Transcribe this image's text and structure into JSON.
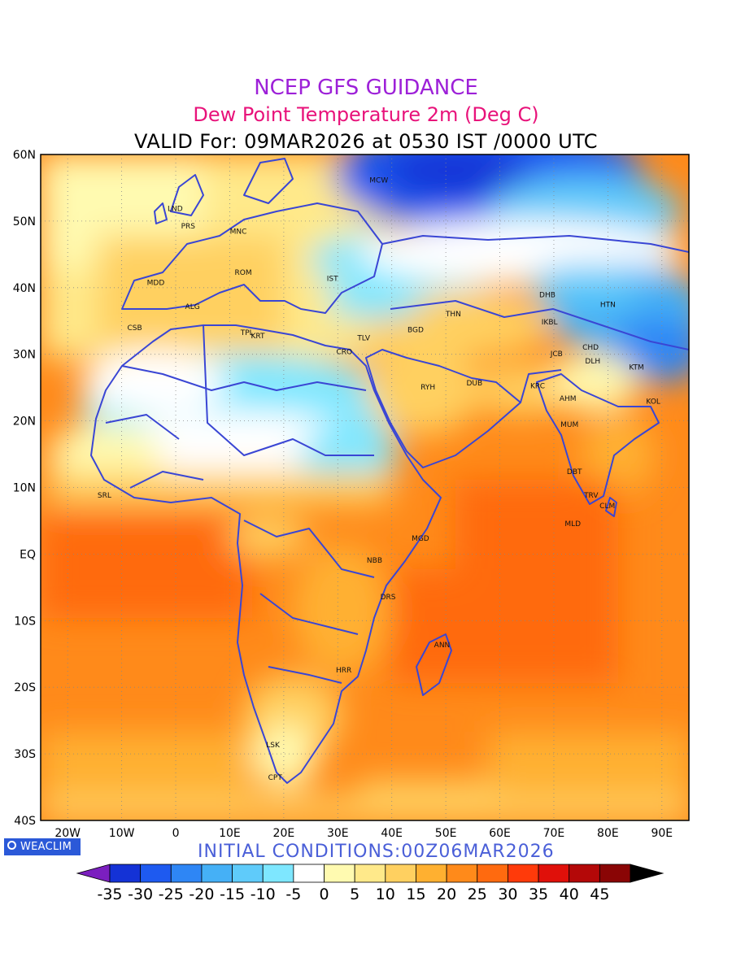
{
  "title": "NCEP GFS GUIDANCE",
  "subtitle": "Dew Point Temperature 2m (Deg C)",
  "valid_line": "VALID For: 09MAR2026 at 0530 IST /0000 UTC",
  "initial_conditions": "INITIAL CONDITIONS:00Z06MAR2026",
  "logo_text": "WEACLIM",
  "map": {
    "lat_labels": [
      "60N",
      "50N",
      "40N",
      "30N",
      "20N",
      "10N",
      "EQ",
      "10S",
      "20S",
      "30S",
      "40S"
    ],
    "lon_labels": [
      "20W",
      "10W",
      "0",
      "10E",
      "20E",
      "30E",
      "40E",
      "50E",
      "60E",
      "70E",
      "80E",
      "90E"
    ],
    "lat_range": [
      -40,
      60
    ],
    "lon_range": [
      -25,
      95
    ],
    "grid": "dotted",
    "stations": [
      {
        "name": "MCW",
        "lon": 37.6,
        "lat": 55.8
      },
      {
        "name": "LND",
        "lon": -0.1,
        "lat": 51.5
      },
      {
        "name": "PRS",
        "lon": 2.3,
        "lat": 48.9
      },
      {
        "name": "MNC",
        "lon": 11.6,
        "lat": 48.1
      },
      {
        "name": "ROM",
        "lon": 12.5,
        "lat": 41.9
      },
      {
        "name": "MDD",
        "lon": -3.7,
        "lat": 40.4
      },
      {
        "name": "IST",
        "lon": 29.0,
        "lat": 41.0
      },
      {
        "name": "ALG",
        "lon": 3.1,
        "lat": 36.8
      },
      {
        "name": "CSB",
        "lon": -7.6,
        "lat": 33.6
      },
      {
        "name": "TPL",
        "lon": 13.2,
        "lat": 32.9
      },
      {
        "name": "KRT",
        "lon": 15.2,
        "lat": 32.4
      },
      {
        "name": "TLV",
        "lon": 34.8,
        "lat": 32.1
      },
      {
        "name": "BGD",
        "lon": 44.4,
        "lat": 33.3
      },
      {
        "name": "THN",
        "lon": 51.4,
        "lat": 35.7
      },
      {
        "name": "CRO",
        "lon": 31.2,
        "lat": 30.0
      },
      {
        "name": "RYH",
        "lon": 46.7,
        "lat": 24.7
      },
      {
        "name": "DUB",
        "lon": 55.3,
        "lat": 25.3
      },
      {
        "name": "KRC",
        "lon": 67.0,
        "lat": 24.9
      },
      {
        "name": "DHB",
        "lon": 68.8,
        "lat": 38.6
      },
      {
        "name": "HTN",
        "lon": 80.0,
        "lat": 37.1
      },
      {
        "name": "IKBL",
        "lon": 69.2,
        "lat": 34.5
      },
      {
        "name": "CHD",
        "lon": 76.8,
        "lat": 30.7
      },
      {
        "name": "JCB",
        "lon": 70.5,
        "lat": 29.7
      },
      {
        "name": "DLH",
        "lon": 77.2,
        "lat": 28.6
      },
      {
        "name": "KTM",
        "lon": 85.3,
        "lat": 27.7
      },
      {
        "name": "AHM",
        "lon": 72.6,
        "lat": 23.0
      },
      {
        "name": "KOL",
        "lon": 88.4,
        "lat": 22.6
      },
      {
        "name": "MUM",
        "lon": 72.9,
        "lat": 19.1
      },
      {
        "name": "DBT",
        "lon": 73.8,
        "lat": 12.0
      },
      {
        "name": "TRV",
        "lon": 76.9,
        "lat": 8.5
      },
      {
        "name": "CLM",
        "lon": 79.9,
        "lat": 6.9
      },
      {
        "name": "MLD",
        "lon": 73.5,
        "lat": 4.2
      },
      {
        "name": "SRL",
        "lon": -13.2,
        "lat": 8.5
      },
      {
        "name": "MGD",
        "lon": 45.3,
        "lat": 2.0
      },
      {
        "name": "NBB",
        "lon": 36.8,
        "lat": -1.3
      },
      {
        "name": "DRS",
        "lon": 39.3,
        "lat": -6.8
      },
      {
        "name": "ANN",
        "lon": 49.3,
        "lat": -14.0
      },
      {
        "name": "HRR",
        "lon": 31.1,
        "lat": -17.8
      },
      {
        "name": "LSK",
        "lon": 18.0,
        "lat": -29.0
      },
      {
        "name": "CPT",
        "lon": 18.4,
        "lat": -33.9
      }
    ]
  },
  "colorbar": {
    "labels": [
      "-35",
      "-30",
      "-25",
      "-20",
      "-15",
      "-10",
      "-5",
      "0",
      "5",
      "10",
      "15",
      "20",
      "25",
      "30",
      "35",
      "40",
      "45"
    ],
    "colors": [
      "#7b1fbf",
      "#1432d6",
      "#1e5af0",
      "#2e86f5",
      "#45b0f6",
      "#5fcbfa",
      "#7ee7ff",
      "#ffffff",
      "#fffab0",
      "#ffe98a",
      "#ffd060",
      "#ffb030",
      "#ff8a1a",
      "#ff6a0f",
      "#ff3a0a",
      "#e0100a",
      "#b40808",
      "#8a0505",
      "#000000"
    ]
  }
}
